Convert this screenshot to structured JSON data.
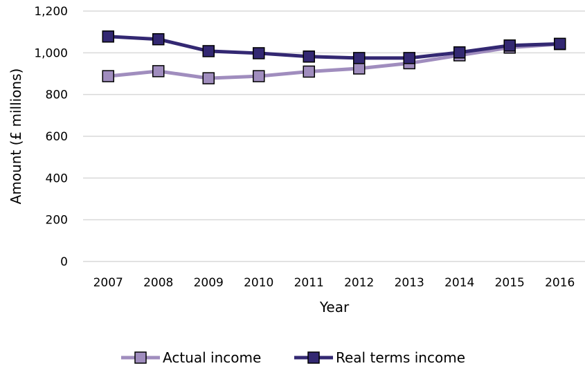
{
  "chart_data": {
    "type": "line",
    "categories": [
      "2007",
      "2008",
      "2009",
      "2010",
      "2011",
      "2012",
      "2013",
      "2014",
      "2015",
      "2016"
    ],
    "series": [
      {
        "name": "Actual income",
        "color": "#a08dbe",
        "values": [
          888,
          912,
          878,
          888,
          910,
          925,
          950,
          988,
          1025,
          1042
        ]
      },
      {
        "name": "Real terms income",
        "color": "#332872",
        "values": [
          1078,
          1065,
          1008,
          998,
          982,
          975,
          975,
          1002,
          1035,
          1043
        ]
      }
    ],
    "title": "",
    "xlabel": "Year",
    "ylabel": "Amount (£ millions)",
    "ylim": [
      0,
      1200
    ],
    "yticks": [
      "0",
      "200",
      "400",
      "600",
      "800",
      "1,000",
      "1,200"
    ],
    "ytick_values": [
      0,
      200,
      400,
      600,
      800,
      1000,
      1200
    ],
    "grid": "horizontal",
    "gridColor": "#d9d9d9",
    "legend": "bottom"
  }
}
